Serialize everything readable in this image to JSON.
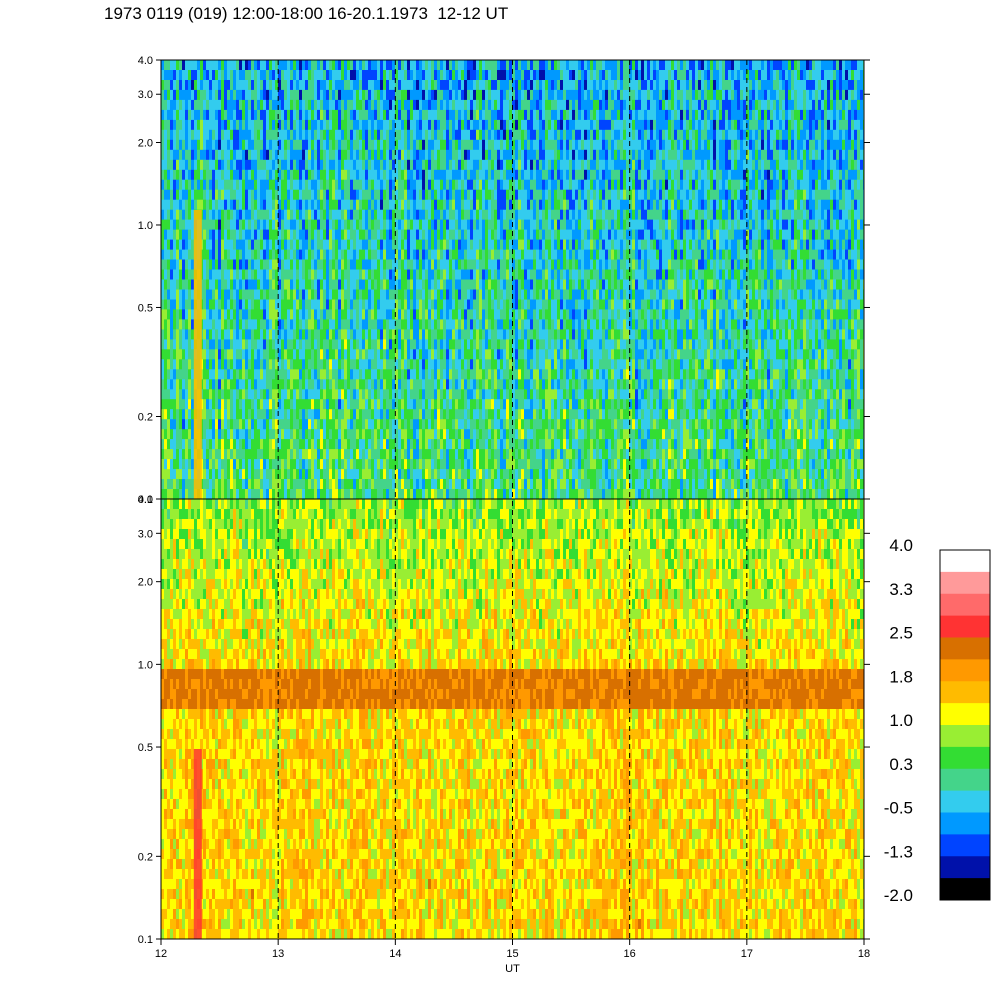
{
  "page": {
    "title": "1973 0119 (019) 12:00-18:00 16-20.1.1973  12-12 UT"
  },
  "chart_data": {
    "type": "heatmap",
    "title": "1973 0119 (019) 12:00-18:00 16-20.1.1973  12-12 UT",
    "xlabel": "UT",
    "x_ticks": [
      "12",
      "13",
      "14",
      "15",
      "16",
      "17",
      "18"
    ],
    "xlim": [
      12,
      18
    ],
    "y_scale": "log",
    "panels": [
      {
        "name": "upper",
        "y_ticks": [
          "0.1",
          "0.2",
          "0.5",
          "1.0",
          "2.0",
          "3.0",
          "4.0"
        ],
        "ylim": [
          0.1,
          4.0
        ],
        "typical_level_low_freq": 0.3,
        "typical_level_high_freq": -0.5
      },
      {
        "name": "lower",
        "y_ticks": [
          "0.1",
          "0.2",
          "0.5",
          "1.0",
          "2.0",
          "3.0",
          "4.0"
        ],
        "ylim": [
          0.1,
          4.0
        ],
        "band_freq_range": [
          0.7,
          0.95
        ],
        "typical_level": 1.8
      }
    ],
    "dashed_gridlines_at": [
      13,
      14,
      15,
      16,
      17
    ],
    "colorbar": {
      "labels": [
        "4.0",
        "3.3",
        "2.5",
        "1.8",
        "1.0",
        "0.3",
        "-0.5",
        "-1.3",
        "-2.0"
      ],
      "range": [
        -2.0,
        4.0
      ],
      "colors": [
        "#ffffff",
        "#ff9a9a",
        "#ff6a6a",
        "#ff3333",
        "#d87000",
        "#ff9900",
        "#ffbb00",
        "#ffff00",
        "#99ee33",
        "#33dd33",
        "#44d48a",
        "#33ccee",
        "#0099ff",
        "#0044ff",
        "#0011aa",
        "#000000"
      ]
    }
  }
}
